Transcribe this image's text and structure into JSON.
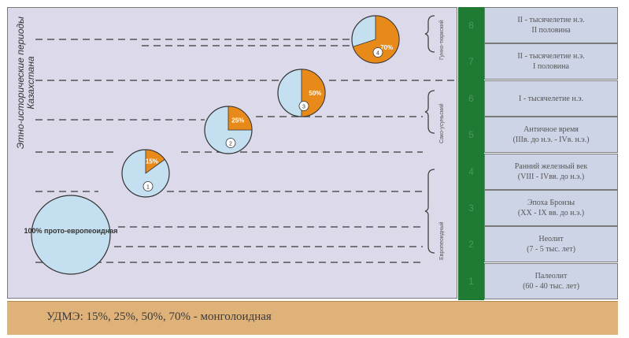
{
  "left_title": "Этно-исторические периоды Казахстана",
  "periods": [
    {
      "num": "8",
      "text": "II - тысячелетие н.э.\nII половина"
    },
    {
      "num": "7",
      "text": "II - тысячелетие н.э.\nI половина"
    },
    {
      "num": "6",
      "text": "I - тысячелетие н.э."
    },
    {
      "num": "5",
      "text": "Античное время\n(IIIв. до н.э. - IVв. н.э.)"
    },
    {
      "num": "4",
      "text": "Ранний железный век\n(VIII - IVвв. до н.э.)"
    },
    {
      "num": "3",
      "text": "Эпоха Бронзы\n(XX - IX вв. до н.э.)"
    },
    {
      "num": "2",
      "text": "Неолит\n(7 - 5 тыс. лет)"
    },
    {
      "num": "1",
      "text": "Палеолит\n(60 - 40 тыс. лет)"
    }
  ],
  "base_circle_label": "100% прото-европеоидная",
  "pies": [
    {
      "pct": 15,
      "label": "15%",
      "id": "1"
    },
    {
      "pct": 25,
      "label": "25%",
      "id": "2"
    },
    {
      "pct": 50,
      "label": "50%",
      "id": "3"
    },
    {
      "pct": 70,
      "label": "70%",
      "id": "4"
    }
  ],
  "braces": [
    "Гунно-тюркский",
    "Сако-усуньский",
    "Европеоидный"
  ],
  "footer": "УДМЭ: 15%, 25%, 50%, 70% - монголоидная",
  "colors": {
    "mongoloid": "#e88a1a",
    "europeoid": "#c4e0f0"
  }
}
